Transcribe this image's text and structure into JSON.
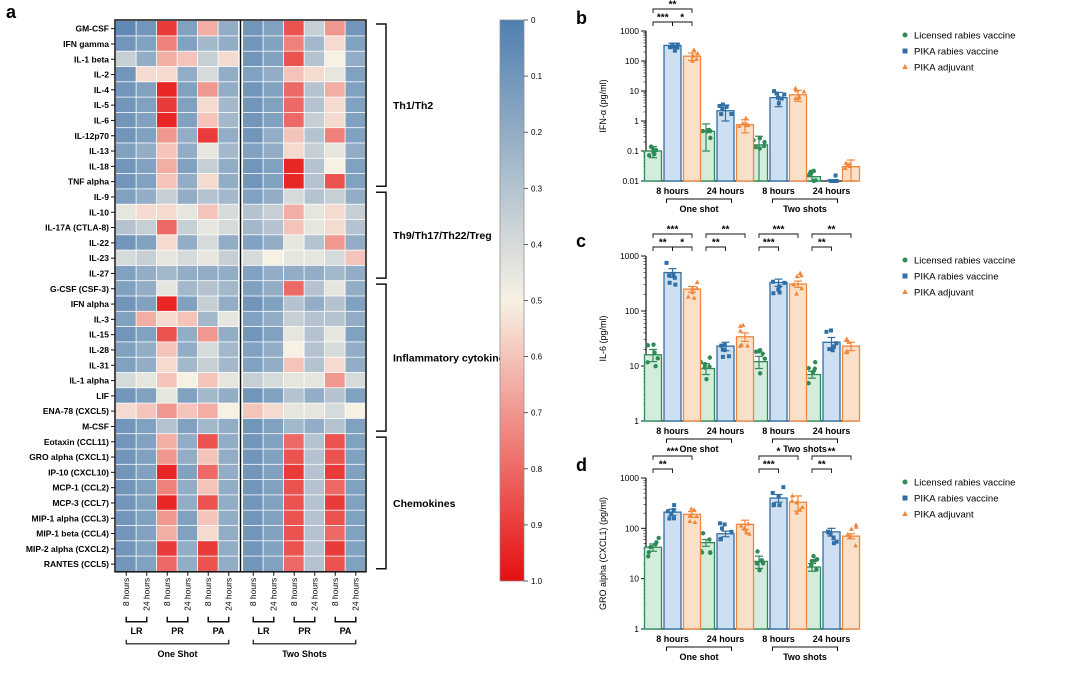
{
  "heatmap": {
    "panel_label": "a",
    "rows": [
      "GM-CSF",
      "IFN gamma",
      "IL-1 beta",
      "IL-2",
      "IL-4",
      "IL-5",
      "IL-6",
      "IL-12p70",
      "IL-13",
      "IL-18",
      "TNF alpha",
      "IL-9",
      "IL-10",
      "IL-17A (CTLA-8)",
      "IL-22",
      "IL-23",
      "IL-27",
      "G-CSF (CSF-3)",
      "IFN alpha",
      "IL-3",
      "IL-15",
      "IL-28",
      "IL-31",
      "IL-1 alpha",
      "LIF",
      "ENA-78 (CXCL5)",
      "M-CSF",
      "Eotaxin (CCL11)",
      "GRO alpha (CXCL1)",
      "IP-10 (CXCL10)",
      "MCP-1 (CCL2)",
      "MCP-3 (CCL7)",
      "MIP-1 alpha (CCL3)",
      "MIP-1 beta (CCL4)",
      "MIP-2 alpha (CXCL2)",
      "RANTES (CCL5)"
    ],
    "columns": [
      "8 hours",
      "24 hours",
      "8 hours",
      "24 hours",
      "8 hours",
      "24 hours",
      "8 hours",
      "24 hours",
      "8 hours",
      "24 hours",
      "8 hours",
      "24 hours"
    ],
    "column_group_short": [
      "LR",
      "PR",
      "PA",
      "LR",
      "PR",
      "PA"
    ],
    "shot_labels": [
      "One Shot",
      "Two Shots"
    ],
    "row_groups": [
      {
        "label": "Th1/Th2",
        "start": 0,
        "end": 10
      },
      {
        "label": "Th9/Th17/Th22/Treg",
        "start": 11,
        "end": 16
      },
      {
        "label": "Inflammatory cytokines",
        "start": 17,
        "end": 26
      },
      {
        "label": "Chemokines",
        "start": 27,
        "end": 35
      }
    ],
    "colorbar_ticks": [
      "0",
      "0.1",
      "0.2",
      "0.3",
      "0.4",
      "0.5",
      "0.6",
      "0.7",
      "0.8",
      "0.9",
      "1.0"
    ],
    "colors": {
      "low": "#4f7fb0",
      "mid": "#f7f1e4",
      "high": "#e60f10"
    },
    "values": [
      [
        0.05,
        0.1,
        0.9,
        0.15,
        0.65,
        0.2,
        0.1,
        0.15,
        0.85,
        0.35,
        0.7,
        0.1
      ],
      [
        0.1,
        0.15,
        0.75,
        0.15,
        0.25,
        0.2,
        0.1,
        0.15,
        0.75,
        0.25,
        0.55,
        0.15
      ],
      [
        0.35,
        0.2,
        0.65,
        0.6,
        0.35,
        0.55,
        0.1,
        0.15,
        0.85,
        0.3,
        0.5,
        0.2
      ],
      [
        0.1,
        0.55,
        0.55,
        0.2,
        0.4,
        0.2,
        0.15,
        0.2,
        0.6,
        0.55,
        0.45,
        0.15
      ],
      [
        0.1,
        0.15,
        0.95,
        0.15,
        0.7,
        0.2,
        0.1,
        0.15,
        0.8,
        0.3,
        0.65,
        0.15
      ],
      [
        0.1,
        0.15,
        0.9,
        0.15,
        0.55,
        0.25,
        0.1,
        0.15,
        0.8,
        0.3,
        0.55,
        0.15
      ],
      [
        0.1,
        0.15,
        0.95,
        0.15,
        0.6,
        0.25,
        0.1,
        0.15,
        0.8,
        0.35,
        0.55,
        0.15
      ],
      [
        0.1,
        0.15,
        0.7,
        0.2,
        0.9,
        0.2,
        0.1,
        0.2,
        0.6,
        0.3,
        0.75,
        0.15
      ],
      [
        0.15,
        0.2,
        0.6,
        0.2,
        0.45,
        0.25,
        0.15,
        0.2,
        0.55,
        0.35,
        0.45,
        0.2
      ],
      [
        0.1,
        0.15,
        0.65,
        0.15,
        0.35,
        0.2,
        0.1,
        0.15,
        0.95,
        0.3,
        0.5,
        0.15
      ],
      [
        0.1,
        0.15,
        0.6,
        0.2,
        0.55,
        0.2,
        0.1,
        0.15,
        0.95,
        0.3,
        0.85,
        0.15
      ],
      [
        0.15,
        0.2,
        0.35,
        0.2,
        0.3,
        0.25,
        0.15,
        0.2,
        0.4,
        0.3,
        0.35,
        0.2
      ],
      [
        0.45,
        0.55,
        0.55,
        0.45,
        0.6,
        0.4,
        0.3,
        0.35,
        0.65,
        0.45,
        0.55,
        0.35
      ],
      [
        0.3,
        0.35,
        0.8,
        0.35,
        0.45,
        0.4,
        0.25,
        0.3,
        0.6,
        0.45,
        0.55,
        0.3
      ],
      [
        0.1,
        0.15,
        0.55,
        0.2,
        0.4,
        0.2,
        0.15,
        0.2,
        0.45,
        0.3,
        0.7,
        0.2
      ],
      [
        0.4,
        0.35,
        0.45,
        0.4,
        0.45,
        0.35,
        0.4,
        0.5,
        0.45,
        0.45,
        0.4,
        0.6
      ],
      [
        0.15,
        0.2,
        0.25,
        0.2,
        0.2,
        0.2,
        0.15,
        0.2,
        0.2,
        0.2,
        0.25,
        0.2
      ],
      [
        0.15,
        0.2,
        0.45,
        0.25,
        0.3,
        0.25,
        0.15,
        0.2,
        0.8,
        0.3,
        0.45,
        0.2
      ],
      [
        0.1,
        0.15,
        0.95,
        0.15,
        0.35,
        0.2,
        0.1,
        0.15,
        0.3,
        0.2,
        0.3,
        0.15
      ],
      [
        0.15,
        0.65,
        0.55,
        0.6,
        0.25,
        0.45,
        0.15,
        0.2,
        0.35,
        0.3,
        0.3,
        0.2
      ],
      [
        0.1,
        0.15,
        0.85,
        0.2,
        0.7,
        0.2,
        0.1,
        0.15,
        0.45,
        0.3,
        0.45,
        0.15
      ],
      [
        0.15,
        0.2,
        0.6,
        0.2,
        0.4,
        0.25,
        0.15,
        0.2,
        0.5,
        0.3,
        0.4,
        0.2
      ],
      [
        0.15,
        0.2,
        0.55,
        0.25,
        0.35,
        0.25,
        0.15,
        0.2,
        0.6,
        0.3,
        0.55,
        0.2
      ],
      [
        0.4,
        0.45,
        0.6,
        0.5,
        0.6,
        0.45,
        0.35,
        0.4,
        0.45,
        0.45,
        0.7,
        0.4
      ],
      [
        0.1,
        0.15,
        0.45,
        0.15,
        0.25,
        0.2,
        0.1,
        0.15,
        0.3,
        0.2,
        0.3,
        0.15
      ],
      [
        0.55,
        0.6,
        0.7,
        0.6,
        0.65,
        0.5,
        0.6,
        0.55,
        0.45,
        0.45,
        0.4,
        0.5
      ],
      [
        0.1,
        0.15,
        0.3,
        0.15,
        0.25,
        0.2,
        0.1,
        0.15,
        0.25,
        0.2,
        0.3,
        0.15
      ],
      [
        0.1,
        0.15,
        0.65,
        0.2,
        0.85,
        0.2,
        0.1,
        0.15,
        0.8,
        0.3,
        0.85,
        0.15
      ],
      [
        0.1,
        0.15,
        0.7,
        0.2,
        0.6,
        0.2,
        0.1,
        0.15,
        0.85,
        0.3,
        0.85,
        0.15
      ],
      [
        0.1,
        0.15,
        0.95,
        0.15,
        0.8,
        0.2,
        0.1,
        0.15,
        0.9,
        0.3,
        0.9,
        0.15
      ],
      [
        0.1,
        0.15,
        0.75,
        0.2,
        0.6,
        0.2,
        0.1,
        0.15,
        0.85,
        0.3,
        0.8,
        0.15
      ],
      [
        0.1,
        0.15,
        0.95,
        0.2,
        0.85,
        0.2,
        0.1,
        0.15,
        0.85,
        0.3,
        0.9,
        0.15
      ],
      [
        0.1,
        0.15,
        0.7,
        0.15,
        0.6,
        0.2,
        0.1,
        0.15,
        0.85,
        0.3,
        0.85,
        0.15
      ],
      [
        0.1,
        0.15,
        0.65,
        0.15,
        0.55,
        0.2,
        0.1,
        0.15,
        0.85,
        0.3,
        0.8,
        0.15
      ],
      [
        0.1,
        0.15,
        0.9,
        0.2,
        0.9,
        0.2,
        0.1,
        0.15,
        0.85,
        0.3,
        0.9,
        0.15
      ],
      [
        0.1,
        0.15,
        0.8,
        0.2,
        0.85,
        0.2,
        0.1,
        0.15,
        0.8,
        0.3,
        0.85,
        0.15
      ]
    ]
  },
  "chart_data": [
    {
      "panel_label": "b",
      "type": "bar",
      "ylabel": "IFN-α (pg/ml)",
      "yscale": "log",
      "ylim": [
        0.01,
        1000
      ],
      "ytick_labels": [
        "0.01",
        "0.1",
        "1",
        "10",
        "100",
        "1000"
      ],
      "categories": [
        "8 hours",
        "24 hours",
        "8 hours",
        "24 hours"
      ],
      "group_labels": [
        "One shot",
        "Two shots"
      ],
      "series": [
        {
          "name": "Licensed rabies vaccine",
          "color": "#2e8b57",
          "fill": "#d4ecdb",
          "values": [
            0.1,
            0.45,
            0.16,
            0.014
          ],
          "errors": [
            0.04,
            0.35,
            0.15,
            0.006
          ]
        },
        {
          "name": "PIKA rabies vaccine",
          "color": "#2f6fa6",
          "fill": "#cddff0",
          "values": [
            330,
            2.2,
            6,
            0.01
          ],
          "errors": [
            60,
            1.2,
            3,
            0.001
          ]
        },
        {
          "name": "PIKA adjuvant",
          "color": "#f0873c",
          "fill": "#fbe0c9",
          "values": [
            145,
            0.75,
            7.5,
            0.03
          ],
          "errors": [
            40,
            0.35,
            3,
            0.02
          ]
        }
      ],
      "significance": [
        {
          "label": "**"
        },
        {
          "label": "***"
        },
        {
          "label": "*"
        }
      ]
    },
    {
      "panel_label": "c",
      "type": "bar",
      "ylabel": "IL-6 (pg/ml)",
      "yscale": "log",
      "ylim": [
        1,
        1000
      ],
      "ytick_labels": [
        "1",
        "10",
        "100",
        "1000"
      ],
      "categories": [
        "8 hours",
        "24 hours",
        "8 hours",
        "24 hours"
      ],
      "group_labels": [
        "One shot",
        "Two shots"
      ],
      "series": [
        {
          "name": "Licensed rabies vaccine",
          "color": "#2e8b57",
          "fill": "#d4ecdb",
          "values": [
            16,
            9,
            12,
            7
          ],
          "errors": [
            4,
            2,
            3,
            1
          ]
        },
        {
          "name": "PIKA rabies vaccine",
          "color": "#2f6fa6",
          "fill": "#cddff0",
          "values": [
            500,
            23,
            330,
            27
          ],
          "errors": [
            90,
            4,
            50,
            6
          ]
        },
        {
          "name": "PIKA adjuvant",
          "color": "#f0873c",
          "fill": "#fbe0c9",
          "values": [
            250,
            34,
            310,
            23
          ],
          "errors": [
            30,
            6,
            40,
            4
          ]
        }
      ],
      "significance": [
        {
          "label": "***"
        },
        {
          "label": "**"
        },
        {
          "label": "*"
        },
        {
          "label": "**"
        },
        {
          "label": "**"
        },
        {
          "label": "***"
        },
        {
          "label": "***"
        },
        {
          "label": "**"
        },
        {
          "label": "**"
        }
      ]
    },
    {
      "panel_label": "d",
      "type": "bar",
      "ylabel": "GRO alpha (CXCL1) (pg/ml)",
      "yscale": "log",
      "ylim": [
        1,
        1000
      ],
      "ytick_labels": [
        "1",
        "10",
        "100",
        "1000"
      ],
      "categories": [
        "8 hours",
        "24 hours",
        "8 hours",
        "24 hours"
      ],
      "group_labels": [
        "One shot",
        "Two shots"
      ],
      "series": [
        {
          "name": "Licensed rabies vaccine",
          "color": "#2e8b57",
          "fill": "#d4ecdb",
          "values": [
            42,
            52,
            22,
            17
          ],
          "errors": [
            7,
            8,
            6,
            3
          ]
        },
        {
          "name": "PIKA rabies vaccine",
          "color": "#2f6fa6",
          "fill": "#cddff0",
          "values": [
            210,
            78,
            400,
            85
          ],
          "errors": [
            30,
            10,
            70,
            15
          ]
        },
        {
          "name": "PIKA adjuvant",
          "color": "#f0873c",
          "fill": "#fbe0c9",
          "values": [
            190,
            120,
            330,
            70
          ],
          "errors": [
            25,
            25,
            110,
            8
          ]
        }
      ],
      "significance": [
        {
          "label": "***"
        },
        {
          "label": "**"
        },
        {
          "label": "*"
        },
        {
          "label": "***"
        },
        {
          "label": "**"
        },
        {
          "label": "**"
        }
      ]
    }
  ]
}
